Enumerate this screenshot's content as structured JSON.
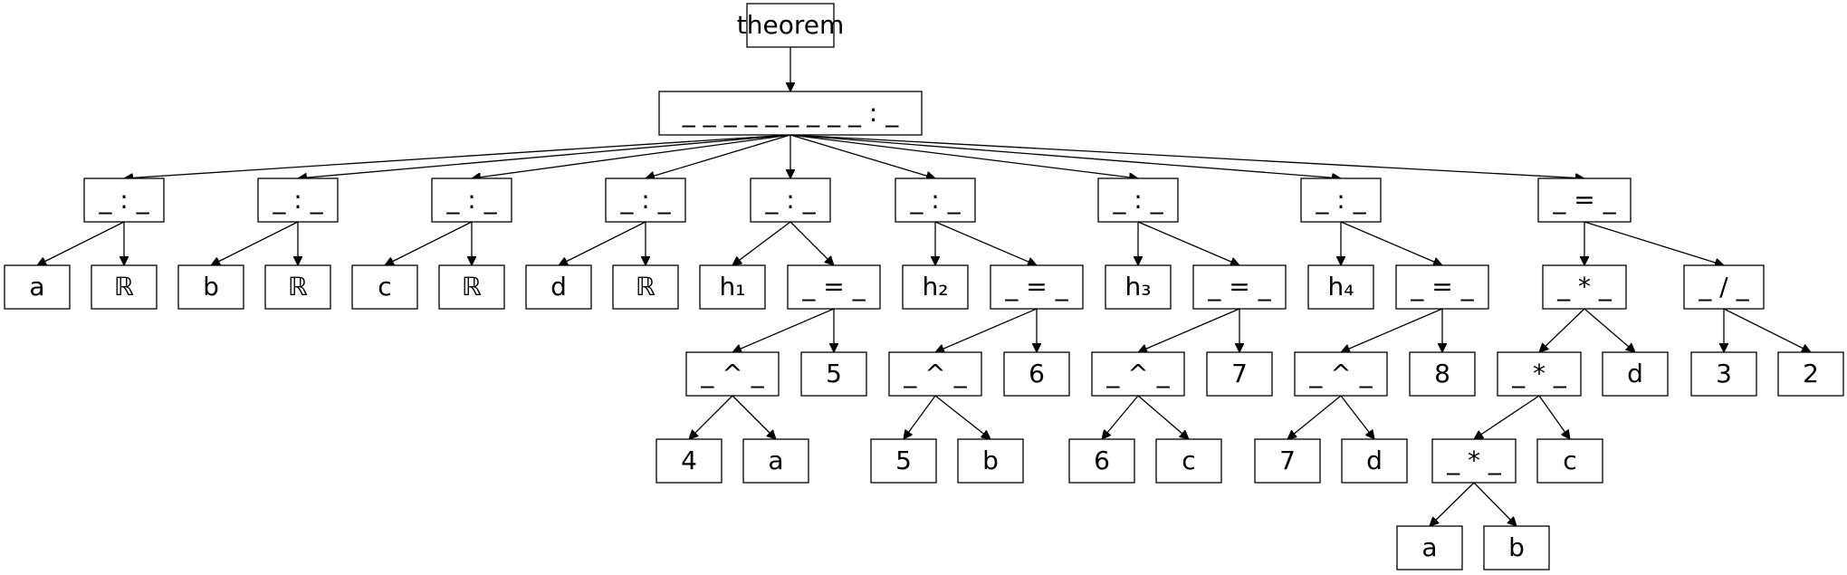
{
  "diagram": {
    "type": "tree",
    "nodes": [
      {
        "id": "theorem",
        "label": "theorem"
      },
      {
        "id": "root",
        "label": "_ _ _ _ _ _ _ _ _ : _"
      },
      {
        "id": "c1",
        "label": "_ : _"
      },
      {
        "id": "c2",
        "label": "_ : _"
      },
      {
        "id": "c3",
        "label": "_ : _"
      },
      {
        "id": "c4",
        "label": "_ : _"
      },
      {
        "id": "c5",
        "label": "_ : _"
      },
      {
        "id": "c6",
        "label": "_ : _"
      },
      {
        "id": "c7",
        "label": "_ : _"
      },
      {
        "id": "c8",
        "label": "_ : _"
      },
      {
        "id": "c9",
        "label": "_ = _"
      },
      {
        "id": "a1",
        "label": "a"
      },
      {
        "id": "r1",
        "label": "ℝ"
      },
      {
        "id": "b1",
        "label": "b"
      },
      {
        "id": "r2",
        "label": "ℝ"
      },
      {
        "id": "cc1",
        "label": "c"
      },
      {
        "id": "r3",
        "label": "ℝ"
      },
      {
        "id": "d1",
        "label": "d"
      },
      {
        "id": "r4",
        "label": "ℝ"
      },
      {
        "id": "h1",
        "label": "h₁"
      },
      {
        "id": "eq1",
        "label": "_ = _"
      },
      {
        "id": "h2",
        "label": "h₂"
      },
      {
        "id": "eq2",
        "label": "_ = _"
      },
      {
        "id": "h3",
        "label": "h₃"
      },
      {
        "id": "eq3",
        "label": "_ = _"
      },
      {
        "id": "h4",
        "label": "h₄"
      },
      {
        "id": "eq4",
        "label": "_ = _"
      },
      {
        "id": "mul1",
        "label": "_ * _"
      },
      {
        "id": "div1",
        "label": "_ / _"
      },
      {
        "id": "pow1",
        "label": "_ ^ _"
      },
      {
        "id": "n5a",
        "label": "5"
      },
      {
        "id": "pow2",
        "label": "_ ^ _"
      },
      {
        "id": "n6a",
        "label": "6"
      },
      {
        "id": "pow3",
        "label": "_ ^ _"
      },
      {
        "id": "n7a",
        "label": "7"
      },
      {
        "id": "pow4",
        "label": "_ ^ _"
      },
      {
        "id": "n8",
        "label": "8"
      },
      {
        "id": "mul2",
        "label": "_ * _"
      },
      {
        "id": "d2",
        "label": "d"
      },
      {
        "id": "n3",
        "label": "3"
      },
      {
        "id": "n2",
        "label": "2"
      },
      {
        "id": "n4",
        "label": "4"
      },
      {
        "id": "a2",
        "label": "a"
      },
      {
        "id": "n5b",
        "label": "5"
      },
      {
        "id": "b2",
        "label": "b"
      },
      {
        "id": "n6b",
        "label": "6"
      },
      {
        "id": "c2b",
        "label": "c"
      },
      {
        "id": "n7b",
        "label": "7"
      },
      {
        "id": "d3",
        "label": "d"
      },
      {
        "id": "mul3",
        "label": "_ * _"
      },
      {
        "id": "c3b",
        "label": "c"
      },
      {
        "id": "a3",
        "label": "a"
      },
      {
        "id": "b3",
        "label": "b"
      }
    ],
    "edges": [
      [
        "theorem",
        "root"
      ],
      [
        "root",
        "c1"
      ],
      [
        "root",
        "c2"
      ],
      [
        "root",
        "c3"
      ],
      [
        "root",
        "c4"
      ],
      [
        "root",
        "c5"
      ],
      [
        "root",
        "c6"
      ],
      [
        "root",
        "c7"
      ],
      [
        "root",
        "c8"
      ],
      [
        "root",
        "c9"
      ],
      [
        "c1",
        "a1"
      ],
      [
        "c1",
        "r1"
      ],
      [
        "c2",
        "b1"
      ],
      [
        "c2",
        "r2"
      ],
      [
        "c3",
        "cc1"
      ],
      [
        "c3",
        "r3"
      ],
      [
        "c4",
        "d1"
      ],
      [
        "c4",
        "r4"
      ],
      [
        "c5",
        "h1"
      ],
      [
        "c5",
        "eq1"
      ],
      [
        "c6",
        "h2"
      ],
      [
        "c6",
        "eq2"
      ],
      [
        "c7",
        "h3"
      ],
      [
        "c7",
        "eq3"
      ],
      [
        "c8",
        "h4"
      ],
      [
        "c8",
        "eq4"
      ],
      [
        "c9",
        "mul1"
      ],
      [
        "c9",
        "div1"
      ],
      [
        "eq1",
        "pow1"
      ],
      [
        "eq1",
        "n5a"
      ],
      [
        "eq2",
        "pow2"
      ],
      [
        "eq2",
        "n6a"
      ],
      [
        "eq3",
        "pow3"
      ],
      [
        "eq3",
        "n7a"
      ],
      [
        "eq4",
        "pow4"
      ],
      [
        "eq4",
        "n8"
      ],
      [
        "mul1",
        "mul2"
      ],
      [
        "mul1",
        "d2"
      ],
      [
        "div1",
        "n3"
      ],
      [
        "div1",
        "n2"
      ],
      [
        "pow1",
        "n4"
      ],
      [
        "pow1",
        "a2"
      ],
      [
        "pow2",
        "n5b"
      ],
      [
        "pow2",
        "b2"
      ],
      [
        "pow3",
        "n6b"
      ],
      [
        "pow3",
        "c2b"
      ],
      [
        "pow4",
        "n7b"
      ],
      [
        "pow4",
        "d3"
      ],
      [
        "mul2",
        "mul3"
      ],
      [
        "mul2",
        "c3b"
      ],
      [
        "mul3",
        "a3"
      ],
      [
        "mul3",
        "b3"
      ]
    ]
  }
}
